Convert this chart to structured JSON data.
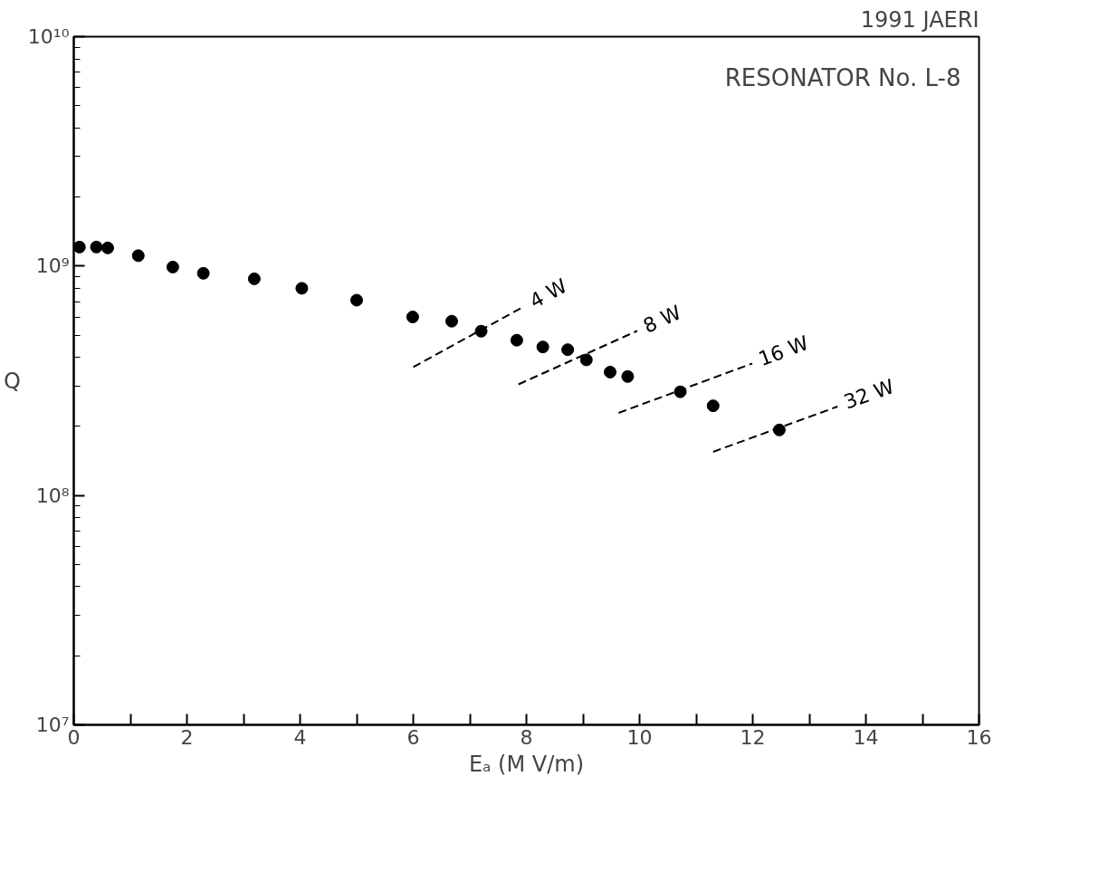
{
  "chart_data": {
    "type": "scatter",
    "title": "RESONATOR No. L-8",
    "xlabel": "Eₐ (M V/m)",
    "ylabel": "Q",
    "log": "y",
    "grid": false,
    "marker": "circle",
    "annotations": [
      "1991 JAERI"
    ],
    "xlim": [
      0,
      16
    ],
    "ylim": [
      10000000.0,
      10000000000.0
    ],
    "xticks": [
      0,
      {
        "value": 1,
        "label": null
      },
      2,
      {
        "value": 3,
        "label": null
      },
      4,
      {
        "value": 5,
        "label": null
      },
      6,
      {
        "value": 7,
        "label": null
      },
      8,
      {
        "value": 9,
        "label": null
      },
      10,
      {
        "value": 11,
        "label": null
      },
      12,
      {
        "value": 13,
        "label": null
      },
      14,
      {
        "value": 15,
        "label": null
      },
      16
    ],
    "yticks": [
      {
        "value": 10000000,
        "label": "10⁷"
      },
      {
        "value": 100000000,
        "label": "10⁸"
      },
      {
        "value": 1000000000,
        "label": "10⁹"
      },
      {
        "value": 10000000000,
        "label": "10¹⁰"
      }
    ],
    "series": [
      {
        "color": "#000000",
        "x": [
          0.1,
          0.4,
          0.6,
          1.14,
          1.75,
          2.29,
          3.19,
          4.03,
          5.0,
          5.99,
          6.68,
          7.2,
          7.83,
          8.29,
          8.73,
          9.06,
          9.48,
          9.79,
          10.72,
          11.3,
          12.47
        ],
        "values": [
          1210000000.0,
          1210000000.0,
          1200000000.0,
          1110000000.0,
          990000000.0,
          930000000.0,
          880000000.0,
          800000000.0,
          710000000.0,
          600000000.0,
          575000000.0,
          520000000.0,
          475000000.0,
          444000000.0,
          432000000.0,
          390000000.0,
          345000000.0,
          330000000.0,
          283000000.0,
          246000000.0,
          193000000.0
        ]
      },
      {
        "type": "line",
        "name": "4 W",
        "color": "#000000",
        "line_style": "dashed",
        "marker": "none",
        "x": [
          6.0,
          7.96
        ],
        "values": [
          363000000.0,
          667000000.0
        ]
      },
      {
        "type": "line",
        "name": "8 W",
        "color": "#000000",
        "line_style": "dashed",
        "marker": "none",
        "x": [
          7.86,
          9.96
        ],
        "values": [
          305000000.0,
          522000000.0
        ]
      },
      {
        "type": "line",
        "name": "16 W",
        "color": "#000000",
        "line_style": "dashed",
        "marker": "none",
        "x": [
          9.63,
          11.99
        ],
        "values": [
          229000000.0,
          376000000.0
        ]
      },
      {
        "type": "line",
        "name": "32 W",
        "color": "#000000",
        "line_style": "dashed",
        "marker": "none",
        "x": [
          11.3,
          13.5
        ],
        "values": [
          155000000.0,
          244000000.0
        ]
      }
    ]
  }
}
